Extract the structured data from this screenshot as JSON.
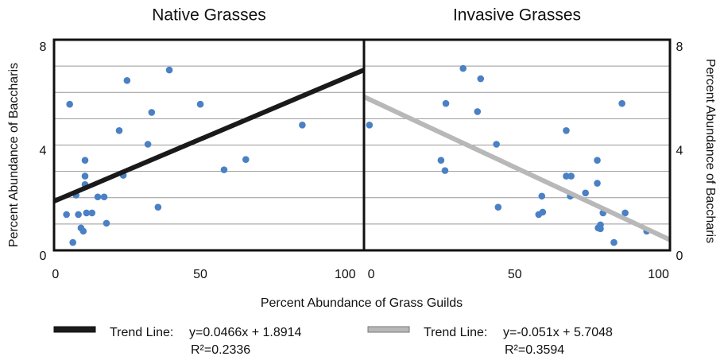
{
  "chart_data": [
    {
      "type": "scatter",
      "title": "Native Grasses",
      "ylabel": "Percent Abundance of Baccharis",
      "xlabel": "Percent Abundance of Grass Guilds",
      "yaxis_side": "left",
      "xlim": [
        -0.5,
        106.5
      ],
      "ylim": [
        0,
        8
      ],
      "xticks": [
        0,
        50,
        100
      ],
      "yticks": [
        0,
        4,
        8
      ],
      "ygrid": [
        1,
        2,
        3,
        4,
        5,
        6,
        7
      ],
      "color": "#4a80c4",
      "x": [
        4.9,
        6.0,
        3.8,
        7.1,
        7.9,
        8.8,
        9.6,
        10.2,
        10.2,
        10.2,
        10.7,
        12.6,
        14.6,
        16.8,
        17.6,
        22.0,
        23.4,
        24.7,
        31.9,
        33.2,
        35.4,
        39.3,
        50.0,
        58.2,
        65.7,
        85.2
      ],
      "values": [
        5.55,
        0.3,
        1.36,
        2.1,
        1.36,
        0.85,
        0.73,
        3.42,
        2.82,
        2.5,
        1.42,
        1.42,
        2.03,
        2.03,
        1.03,
        4.55,
        2.85,
        6.45,
        4.03,
        5.24,
        1.64,
        6.85,
        5.55,
        3.06,
        3.45,
        4.76
      ],
      "trend": {
        "label": "Trend Line:",
        "equation": "y=0.0466x + 1.8914",
        "r2": "R²=0.2336",
        "slope": 0.0466,
        "intercept": 1.8914,
        "color": "#1a1a1a"
      }
    },
    {
      "type": "scatter",
      "title": "Invasive Grasses",
      "ylabel": "Percent Abundance of Baccharis",
      "yaxis_side": "right",
      "xlim": [
        -2.5,
        104
      ],
      "ylim": [
        0,
        8
      ],
      "xticks": [
        0,
        50,
        100
      ],
      "yticks": [
        0,
        4,
        8
      ],
      "ygrid": [
        1,
        2,
        3,
        4,
        5,
        6,
        7
      ],
      "color": "#4a80c4",
      "x": [
        -0.6,
        24.3,
        25.7,
        26.0,
        32.0,
        37.0,
        38.1,
        43.6,
        44.2,
        58.3,
        59.7,
        59.4,
        67.9,
        67.9,
        69.6,
        69.3,
        74.6,
        78.7,
        78.7,
        79.0,
        79.8,
        79.8,
        80.7,
        84.5,
        87.3,
        88.4,
        95.9
      ],
      "values": [
        4.76,
        3.42,
        3.03,
        5.58,
        6.91,
        5.27,
        6.52,
        4.03,
        1.64,
        1.36,
        1.45,
        2.06,
        4.55,
        2.82,
        2.82,
        2.06,
        2.18,
        2.55,
        3.42,
        0.85,
        0.82,
        0.97,
        1.42,
        0.3,
        5.58,
        1.42,
        0.73
      ],
      "trend": {
        "label": "Trend Line:",
        "equation": "y=-0.051x + 5.7048",
        "r2": "R²=0.3594",
        "slope": -0.051,
        "intercept": 5.7048,
        "color": "#b8b8b8"
      }
    }
  ]
}
